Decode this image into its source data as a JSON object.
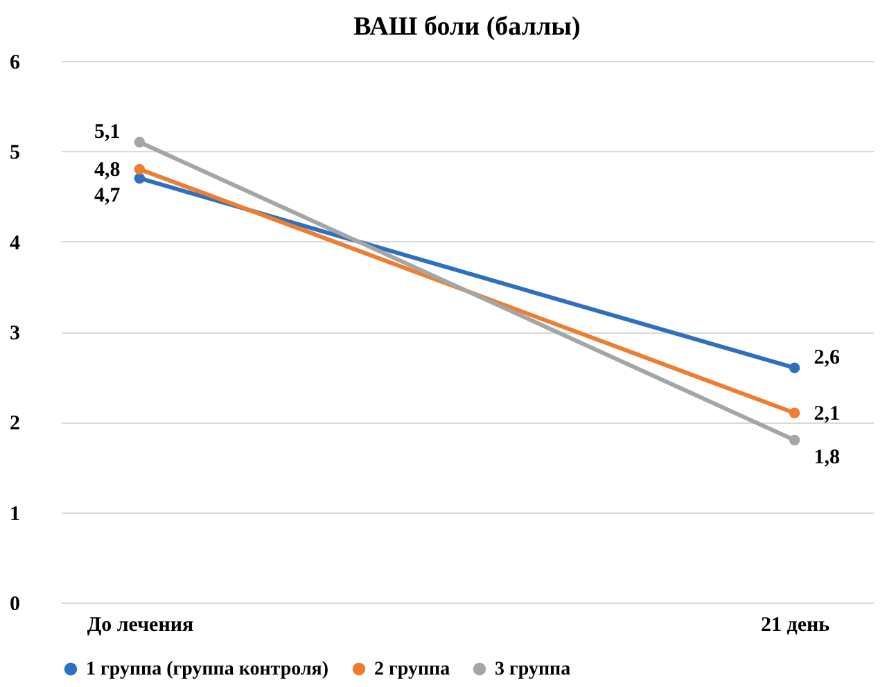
{
  "chart_data": {
    "type": "line",
    "title": "ВАШ боли (баллы)",
    "categories": [
      "До лечения",
      "21 день"
    ],
    "series": [
      {
        "name": "1 группа (группа контроля)",
        "color": "#2e6fc0",
        "values": [
          4.7,
          2.6
        ],
        "value_labels": [
          "4,7",
          "2,6"
        ]
      },
      {
        "name": "2 группа",
        "color": "#ed7d31",
        "values": [
          4.8,
          2.1
        ],
        "value_labels": [
          "4,8",
          "2,1"
        ]
      },
      {
        "name": "3 группа",
        "color": "#a5a5a5",
        "values": [
          5.1,
          1.8
        ],
        "value_labels": [
          "5,1",
          "1,8"
        ]
      }
    ],
    "ylim": [
      0,
      6
    ],
    "yticks": [
      0,
      1,
      2,
      3,
      4,
      5,
      6
    ],
    "grid": "y",
    "legend": "bottom",
    "marker": "circle",
    "line_style": "solid"
  }
}
